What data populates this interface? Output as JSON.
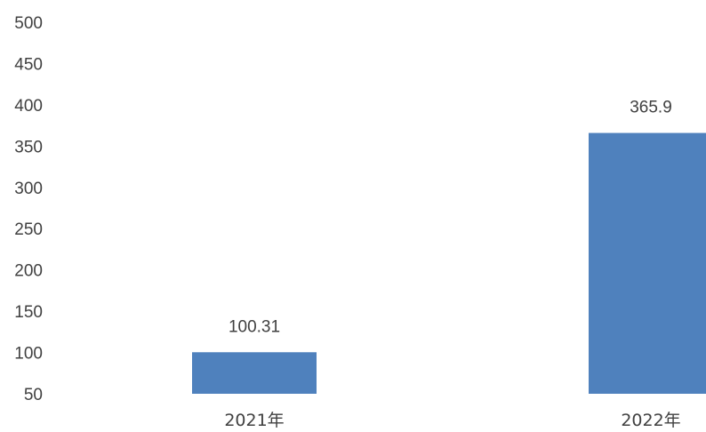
{
  "chart_data": {
    "type": "bar",
    "categories": [
      "2021年",
      "2022年"
    ],
    "values": [
      100.31,
      365.9
    ],
    "value_labels": [
      "100.31",
      "365.9"
    ],
    "title": "",
    "xlabel": "",
    "ylabel": "",
    "ylim": [
      50,
      500
    ],
    "yticks": [
      "500",
      "450",
      "400",
      "350",
      "300",
      "250",
      "200",
      "150",
      "100",
      "50"
    ],
    "grid": false,
    "legend": "none",
    "bar_color": "#4f81bd"
  }
}
